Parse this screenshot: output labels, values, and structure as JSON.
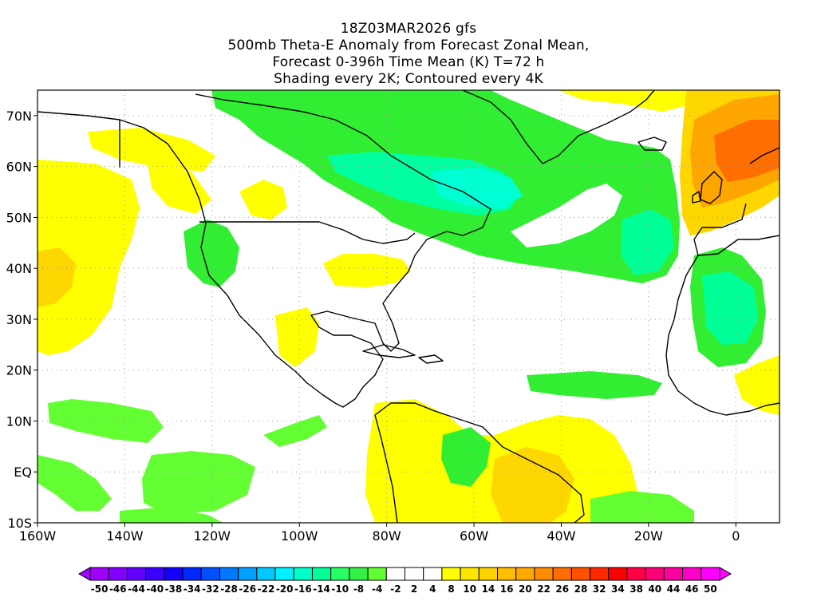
{
  "title": {
    "line1": "18Z03MAR2026 gfs",
    "line2": "500mb Theta-E Anomaly from Forecast Zonal Mean,",
    "line3": "Forecast 0-396h Time Mean (K) T=72 h",
    "line4": "Shading every 2K; Contoured every 4K"
  },
  "map": {
    "lon_range": [
      -160,
      10
    ],
    "lat_range": [
      -10,
      75
    ],
    "lat_ticks": [
      {
        "value": 70,
        "label": "70N"
      },
      {
        "value": 60,
        "label": "60N"
      },
      {
        "value": 50,
        "label": "50N"
      },
      {
        "value": 40,
        "label": "40N"
      },
      {
        "value": 30,
        "label": "30N"
      },
      {
        "value": 20,
        "label": "20N"
      },
      {
        "value": 10,
        "label": "10N"
      },
      {
        "value": 0,
        "label": "EQ"
      },
      {
        "value": -10,
        "label": "10S"
      }
    ],
    "lon_ticks": [
      {
        "value": -160,
        "label": "160W"
      },
      {
        "value": -140,
        "label": "140W"
      },
      {
        "value": -120,
        "label": "120W"
      },
      {
        "value": -100,
        "label": "100W"
      },
      {
        "value": -80,
        "label": "80W"
      },
      {
        "value": -60,
        "label": "60W"
      },
      {
        "value": -40,
        "label": "40W"
      },
      {
        "value": -20,
        "label": "20W"
      },
      {
        "value": 0,
        "label": "0"
      }
    ],
    "grid": "dotted"
  },
  "colorbar": {
    "colors": [
      "#a000ff",
      "#8200ff",
      "#6400ff",
      "#3c00ff",
      "#1400ff",
      "#0028ff",
      "#0050ff",
      "#0078ff",
      "#00a0ff",
      "#00c8ff",
      "#00f0ff",
      "#00ffc8",
      "#00ff96",
      "#28ff64",
      "#32f046",
      "#64ff32",
      "#ffffff",
      "#ffffff",
      "#ffffff",
      "#ffff00",
      "#ffe600",
      "#ffd200",
      "#ffbe00",
      "#ffaa00",
      "#ff8c00",
      "#ff6e00",
      "#ff5000",
      "#ff2800",
      "#ff0000",
      "#ff0046",
      "#ff0078",
      "#ff00a0",
      "#ff00c8",
      "#ff00ff"
    ],
    "labels": [
      "-50",
      "-46",
      "-44",
      "-40",
      "-38",
      "-34",
      "-32",
      "-28",
      "-26",
      "-22",
      "-20",
      "-16",
      "-14",
      "-10",
      "-8",
      "-4",
      "-2",
      "2",
      "4",
      "8",
      "10",
      "14",
      "16",
      "20",
      "22",
      "26",
      "28",
      "32",
      "34",
      "38",
      "40",
      "44",
      "46",
      "50"
    ]
  },
  "regions": [
    {
      "name": "east-pacific-warm",
      "color": "#ffd700"
    },
    {
      "name": "canada-greenland-cold",
      "color": "#32ee32"
    },
    {
      "name": "hudson-bay-cold-core",
      "color": "#00ffc8"
    },
    {
      "name": "north-atlantic-cold",
      "color": "#32ee32"
    },
    {
      "name": "west-europe-warm",
      "color": "#ff8c00"
    },
    {
      "name": "west-africa-cold",
      "color": "#32ee32"
    },
    {
      "name": "tropical-pacific-cold",
      "color": "#64ff32"
    },
    {
      "name": "south-america-warm",
      "color": "#ffd700"
    }
  ]
}
